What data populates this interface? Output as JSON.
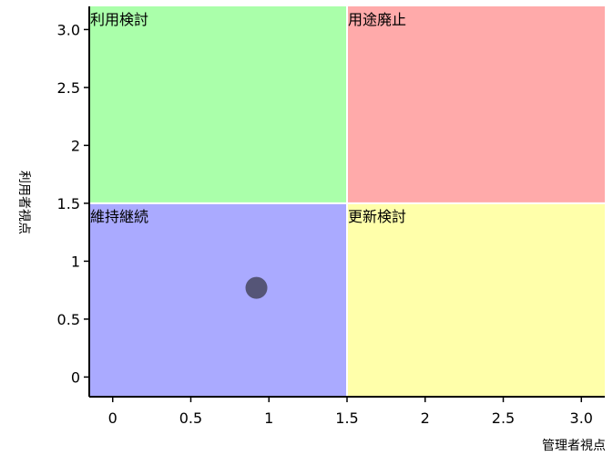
{
  "chart_data": {
    "type": "scatter",
    "xlabel": "管理者視点",
    "ylabel": "利用者視点",
    "xlim": [
      -0.15,
      3.15
    ],
    "ylim": [
      -0.17,
      3.2
    ],
    "x_ticks": [
      {
        "value": 0,
        "label": "0"
      },
      {
        "value": 0.5,
        "label": "0.5"
      },
      {
        "value": 1,
        "label": "1"
      },
      {
        "value": 1.5,
        "label": "1.5"
      },
      {
        "value": 2,
        "label": "2"
      },
      {
        "value": 2.5,
        "label": "2.5"
      },
      {
        "value": 3,
        "label": "3.0"
      }
    ],
    "y_ticks": [
      {
        "value": 0,
        "label": "0"
      },
      {
        "value": 0.5,
        "label": "0.5"
      },
      {
        "value": 1,
        "label": "1"
      },
      {
        "value": 1.5,
        "label": "1.5"
      },
      {
        "value": 2,
        "label": "2"
      },
      {
        "value": 2.5,
        "label": "2.5"
      },
      {
        "value": 3,
        "label": "3.0"
      }
    ],
    "quadrants": [
      {
        "label": "利用検討",
        "x_range": [
          -0.15,
          1.5
        ],
        "y_range": [
          1.5,
          3.2
        ],
        "color": "#aaffaa"
      },
      {
        "label": "用途廃止",
        "x_range": [
          1.5,
          3.15
        ],
        "y_range": [
          1.5,
          3.2
        ],
        "color": "#ffaaaa"
      },
      {
        "label": "維持継続",
        "x_range": [
          -0.15,
          1.5
        ],
        "y_range": [
          -0.17,
          1.5
        ],
        "color": "#aaaaff"
      },
      {
        "label": "更新検討",
        "x_range": [
          1.5,
          3.15
        ],
        "y_range": [
          -0.17,
          1.5
        ],
        "color": "#ffffaa"
      }
    ],
    "points": [
      {
        "x": 0.92,
        "y": 0.77,
        "color": "#555577"
      }
    ]
  }
}
